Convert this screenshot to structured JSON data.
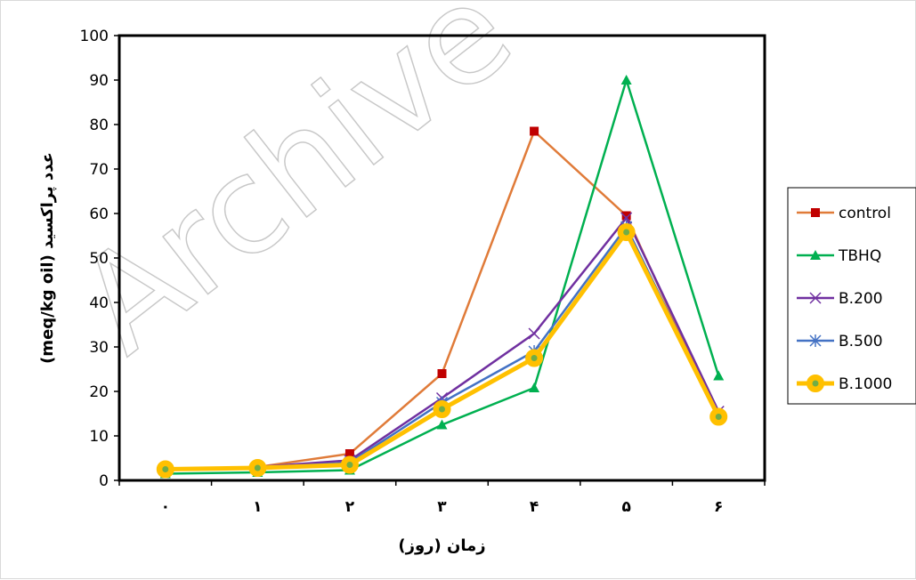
{
  "watermark": "Archive",
  "colors": {
    "control": "#E07B39",
    "control_marker": "#C00000",
    "TBHQ": "#00B050",
    "B200": "#7030A0",
    "B500": "#4472C4",
    "B1000": "#FFC000",
    "B1000_center": "#70AD47"
  },
  "chart_data": {
    "type": "line",
    "title": "",
    "xlabel": "زمان (روز)",
    "ylabel": "عدد پراکسید (meq/kg oil)",
    "categories": [
      "۰",
      "۱",
      "۲",
      "۳",
      "۴",
      "۵",
      "۶"
    ],
    "ylim": [
      0,
      100
    ],
    "yticks": [
      0,
      10,
      20,
      30,
      40,
      50,
      60,
      70,
      80,
      90,
      100
    ],
    "grid": false,
    "legend_position": "right",
    "series": [
      {
        "name": "control",
        "values": [
          2.3,
          3.0,
          6.0,
          24.0,
          78.5,
          59.5,
          14.0
        ],
        "marker": "square",
        "line_color": "#E07B39",
        "marker_color": "#C00000"
      },
      {
        "name": "TBHQ",
        "values": [
          1.5,
          1.8,
          2.3,
          12.5,
          20.8,
          90.0,
          23.5
        ],
        "marker": "triangle",
        "line_color": "#00B050",
        "marker_color": "#00B050"
      },
      {
        "name": "B.200",
        "values": [
          2.5,
          3.0,
          4.5,
          18.5,
          33.0,
          59.0,
          15.5
        ],
        "marker": "x",
        "line_color": "#7030A0",
        "marker_color": "#7030A0"
      },
      {
        "name": "B.500",
        "values": [
          2.3,
          2.8,
          4.0,
          17.5,
          29.0,
          57.0,
          14.5
        ],
        "marker": "star",
        "line_color": "#4472C4",
        "marker_color": "#4472C4"
      },
      {
        "name": "B.1000",
        "values": [
          2.5,
          2.8,
          3.5,
          16.0,
          27.5,
          55.8,
          14.3
        ],
        "marker": "circle",
        "line_color": "#FFC000",
        "marker_color": "#FFC000"
      }
    ]
  }
}
